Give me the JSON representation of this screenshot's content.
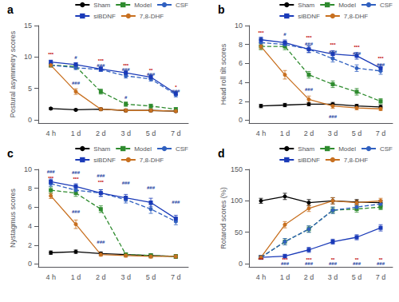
{
  "chart_data": [
    {
      "type": "line",
      "title": "a",
      "ylabel": "Postural asymmetry scores",
      "categories": [
        "4 h",
        "1 d",
        "2 d",
        "3 d",
        "5 d",
        "7 d"
      ],
      "ylim": [
        -0.5,
        15
      ],
      "yticks": [
        0,
        5,
        10,
        15
      ],
      "grid": false,
      "legend": "upper right",
      "series": [
        {
          "name": "Sham",
          "color": "#000000",
          "line_style": "solid",
          "marker": "circle",
          "values": [
            1.8,
            1.6,
            1.7,
            1.5,
            1.5,
            1.4
          ],
          "err": [
            0.15,
            0.15,
            0.15,
            0.15,
            0.15,
            0.15
          ]
        },
        {
          "name": "Model",
          "color": "#2e8b2e",
          "line_style": "dashed",
          "marker": "square",
          "values": [
            8.7,
            8.5,
            4.5,
            2.5,
            2.2,
            1.7
          ],
          "err": [
            0.3,
            0.35,
            0.4,
            0.35,
            0.3,
            0.25
          ]
        },
        {
          "name": "CSF",
          "color": "#3060c0",
          "line_style": "dashed",
          "marker": "circle",
          "values": [
            8.7,
            8.3,
            8.0,
            7.0,
            6.5,
            4.0
          ],
          "err": [
            0.25,
            0.3,
            0.3,
            0.35,
            0.35,
            0.35
          ]
        },
        {
          "name": "siBDNF",
          "color": "#1a3ab8",
          "line_style": "solid",
          "marker": "square",
          "values": [
            9.2,
            8.8,
            8.1,
            7.5,
            6.8,
            4.2
          ],
          "err": [
            0.3,
            0.3,
            0.35,
            0.3,
            0.35,
            0.35
          ]
        },
        {
          "name": "7,8-DHF",
          "color": "#c87020",
          "line_style": "solid",
          "marker": "circle",
          "values": [
            8.7,
            4.5,
            1.7,
            1.5,
            1.5,
            1.4
          ],
          "err": [
            0.3,
            0.45,
            0.25,
            0.25,
            0.25,
            0.2
          ]
        }
      ],
      "annotations": [
        {
          "x": "4 h",
          "y": 10.0,
          "text": "***",
          "color": "#c00000"
        },
        {
          "x": "1 d",
          "y": 9.5,
          "text": "#",
          "color": "#2040a0"
        },
        {
          "x": "1 d",
          "y": 5.5,
          "text": "###",
          "color": "#2040a0"
        },
        {
          "x": "2 d",
          "y": 9.0,
          "text": "***",
          "color": "#c00000"
        },
        {
          "x": "2 d",
          "y": 8.3,
          "text": "###",
          "color": "#2040a0"
        },
        {
          "x": "3 d",
          "y": 8.3,
          "text": "***",
          "color": "#c00000"
        },
        {
          "x": "3 d",
          "y": 7.6,
          "text": "###",
          "color": "#2040a0"
        },
        {
          "x": "3 d",
          "y": 3.2,
          "text": "#",
          "color": "#2040a0"
        },
        {
          "x": "5 d",
          "y": 7.5,
          "text": "**",
          "color": "#c00000"
        },
        {
          "x": "5 d",
          "y": 6.9,
          "text": "###",
          "color": "#2040a0"
        },
        {
          "x": "7 d",
          "y": 4.8,
          "text": "*",
          "color": "#c00000"
        },
        {
          "x": "7 d",
          "y": 4.2,
          "text": "###",
          "color": "#2040a0"
        }
      ]
    },
    {
      "type": "line",
      "title": "b",
      "ylabel": "Head roll tilt scores",
      "categories": [
        "4 h",
        "1 d",
        "2 d",
        "3 d",
        "5 d",
        "7 d"
      ],
      "ylim": [
        -0.3,
        10
      ],
      "yticks": [
        0,
        2,
        4,
        6,
        8,
        10
      ],
      "grid": false,
      "legend": "upper right",
      "series": [
        {
          "name": "Sham",
          "color": "#000000",
          "line_style": "solid",
          "marker": "circle",
          "values": [
            1.5,
            1.6,
            1.7,
            1.7,
            1.5,
            1.4
          ],
          "err": [
            0.18,
            0.18,
            0.18,
            0.18,
            0.18,
            0.18
          ]
        },
        {
          "name": "Model",
          "color": "#2e8b2e",
          "line_style": "dashed",
          "marker": "square",
          "values": [
            7.8,
            7.8,
            4.8,
            3.8,
            3.0,
            2.0
          ],
          "err": [
            0.35,
            0.35,
            0.35,
            0.35,
            0.35,
            0.28
          ]
        },
        {
          "name": "CSF",
          "color": "#3060c0",
          "line_style": "dashed",
          "marker": "circle",
          "values": [
            8.2,
            8.0,
            7.5,
            6.5,
            5.5,
            5.2
          ],
          "err": [
            0.28,
            0.28,
            0.35,
            0.35,
            0.35,
            0.35
          ]
        },
        {
          "name": "siBDNF",
          "color": "#1a3ab8",
          "line_style": "solid",
          "marker": "square",
          "values": [
            8.5,
            8.2,
            7.5,
            7.0,
            6.8,
            5.5
          ],
          "err": [
            0.28,
            0.28,
            0.35,
            0.35,
            0.35,
            0.35
          ]
        },
        {
          "name": "7,8-DHF",
          "color": "#c87020",
          "line_style": "solid",
          "marker": "circle",
          "values": [
            7.8,
            4.8,
            2.2,
            1.5,
            1.3,
            1.2
          ],
          "err": [
            0.28,
            0.45,
            0.35,
            0.25,
            0.2,
            0.18
          ]
        }
      ],
      "annotations": [
        {
          "x": "4 h",
          "y": 9.0,
          "text": "***",
          "color": "#c00000"
        },
        {
          "x": "4 h",
          "y": 8.3,
          "text": "#",
          "color": "#2040a0"
        },
        {
          "x": "1 d",
          "y": 8.8,
          "text": "#",
          "color": "#2040a0"
        },
        {
          "x": "2 d",
          "y": 8.5,
          "text": "***",
          "color": "#c00000"
        },
        {
          "x": "2 d",
          "y": 7.8,
          "text": "###",
          "color": "#2040a0"
        },
        {
          "x": "2 d",
          "y": 3.0,
          "text": "###",
          "color": "#2040a0"
        },
        {
          "x": "3 d",
          "y": 7.7,
          "text": "***",
          "color": "#c00000"
        },
        {
          "x": "3 d",
          "y": 7.0,
          "text": "###",
          "color": "#2040a0"
        },
        {
          "x": "3 d",
          "y": 0.1,
          "text": "###",
          "color": "#2040a0"
        },
        {
          "x": "5 d",
          "y": 7.5,
          "text": "***",
          "color": "#c00000"
        },
        {
          "x": "5 d",
          "y": 6.8,
          "text": "###",
          "color": "#2040a0"
        },
        {
          "x": "7 d",
          "y": 6.3,
          "text": "***",
          "color": "#c00000"
        },
        {
          "x": "7 d",
          "y": 5.6,
          "text": "###",
          "color": "#2040a0"
        }
      ]
    },
    {
      "type": "line",
      "title": "c",
      "ylabel": "Nystagmus scores",
      "categories": [
        "4 h",
        "1 d",
        "2 d",
        "3 d",
        "5 d",
        "7 d"
      ],
      "ylim": [
        -0.3,
        10
      ],
      "yticks": [
        0,
        2,
        4,
        6,
        8,
        10
      ],
      "grid": false,
      "legend": "upper right",
      "series": [
        {
          "name": "Sham",
          "color": "#000000",
          "line_style": "solid",
          "marker": "circle",
          "values": [
            1.2,
            1.3,
            1.1,
            1.0,
            0.9,
            0.8
          ],
          "err": [
            0.18,
            0.18,
            0.18,
            0.18,
            0.18,
            0.18
          ]
        },
        {
          "name": "Model",
          "color": "#2e8b2e",
          "line_style": "dashed",
          "marker": "square",
          "values": [
            7.8,
            7.5,
            5.8,
            1.0,
            0.9,
            0.8
          ],
          "err": [
            0.35,
            0.35,
            0.35,
            0.18,
            0.18,
            0.18
          ]
        },
        {
          "name": "CSF",
          "color": "#3060c0",
          "line_style": "dashed",
          "marker": "circle",
          "values": [
            8.5,
            7.8,
            7.5,
            6.8,
            5.8,
            4.5
          ],
          "err": [
            0.28,
            0.28,
            0.35,
            0.35,
            0.45,
            0.35
          ]
        },
        {
          "name": "siBDNF",
          "color": "#1a3ab8",
          "line_style": "solid",
          "marker": "square",
          "values": [
            8.7,
            8.2,
            7.5,
            7.0,
            6.5,
            4.8
          ],
          "err": [
            0.28,
            0.28,
            0.35,
            0.35,
            0.45,
            0.35
          ]
        },
        {
          "name": "7,8-DHF",
          "color": "#c87020",
          "line_style": "solid",
          "marker": "circle",
          "values": [
            7.2,
            4.2,
            1.0,
            0.9,
            0.8,
            0.8
          ],
          "err": [
            0.28,
            0.45,
            0.18,
            0.18,
            0.18,
            0.18
          ]
        }
      ],
      "annotations": [
        {
          "x": "4 h",
          "y": 9.5,
          "text": "###",
          "color": "#2040a0"
        },
        {
          "x": "4 h",
          "y": 8.8,
          "text": "***",
          "color": "#c00000"
        },
        {
          "x": "1 d",
          "y": 9.4,
          "text": "###",
          "color": "#2040a0"
        },
        {
          "x": "1 d",
          "y": 8.7,
          "text": "***",
          "color": "#c00000"
        },
        {
          "x": "1 d",
          "y": 5.3,
          "text": "###",
          "color": "#2040a0"
        },
        {
          "x": "2 d",
          "y": 9.1,
          "text": "###",
          "color": "#2040a0"
        },
        {
          "x": "2 d",
          "y": 8.4,
          "text": "***",
          "color": "#c00000"
        },
        {
          "x": "2 d",
          "y": 2.1,
          "text": "###",
          "color": "#2040a0"
        },
        {
          "x": "3 d",
          "y": 8.3,
          "text": "###",
          "color": "#2040a0"
        },
        {
          "x": "5 d",
          "y": 7.8,
          "text": "###",
          "color": "#2040a0"
        },
        {
          "x": "7 d",
          "y": 6.3,
          "text": "###",
          "color": "#2040a0"
        }
      ]
    },
    {
      "type": "line",
      "title": "d",
      "ylabel": "Rotarod scores (%)",
      "categories": [
        "4 h",
        "1 d",
        "2 d",
        "3 d",
        "5 d",
        "7 d"
      ],
      "ylim": [
        -5,
        150
      ],
      "yticks": [
        0,
        50,
        100,
        150
      ],
      "grid": false,
      "legend": "upper right",
      "series": [
        {
          "name": "Sham",
          "color": "#000000",
          "line_style": "solid",
          "marker": "circle",
          "values": [
            100,
            107,
            97,
            100,
            98,
            97
          ],
          "err": [
            4,
            5,
            5,
            5,
            4,
            4
          ]
        },
        {
          "name": "Model",
          "color": "#2e8b2e",
          "line_style": "dashed",
          "marker": "square",
          "values": [
            10,
            35,
            55,
            85,
            87,
            90
          ],
          "err": [
            3,
            5,
            5,
            5,
            5,
            4
          ]
        },
        {
          "name": "CSF",
          "color": "#3060c0",
          "line_style": "dashed",
          "marker": "circle",
          "values": [
            10,
            35,
            55,
            85,
            90,
            95
          ],
          "err": [
            3,
            5,
            5,
            5,
            5,
            4
          ]
        },
        {
          "name": "siBDNF",
          "color": "#1a3ab8",
          "line_style": "solid",
          "marker": "square",
          "values": [
            10,
            12,
            22,
            35,
            42,
            57
          ],
          "err": [
            3,
            3,
            4,
            4,
            4,
            5
          ]
        },
        {
          "name": "7,8-DHF",
          "color": "#c87020",
          "line_style": "solid",
          "marker": "circle",
          "values": [
            10,
            62,
            88,
            100,
            97,
            100
          ],
          "err": [
            3,
            5,
            5,
            5,
            4,
            4
          ]
        }
      ],
      "annotations": [
        {
          "x": "4 h",
          "y": 2,
          "text": "***",
          "color": "#c00000"
        },
        {
          "x": "1 d",
          "y": 2,
          "text": "***",
          "color": "#c00000"
        },
        {
          "x": "1 d",
          "y": -4,
          "text": "###",
          "color": "#2040a0"
        },
        {
          "x": "2 d",
          "y": 2,
          "text": "***",
          "color": "#c00000"
        },
        {
          "x": "2 d",
          "y": -4,
          "text": "###",
          "color": "#2040a0"
        },
        {
          "x": "3 d",
          "y": 2,
          "text": "**",
          "color": "#c00000"
        },
        {
          "x": "3 d",
          "y": -4,
          "text": "###",
          "color": "#2040a0"
        },
        {
          "x": "5 d",
          "y": 2,
          "text": "**",
          "color": "#c00000"
        },
        {
          "x": "5 d",
          "y": -4,
          "text": "###",
          "color": "#2040a0"
        },
        {
          "x": "7 d",
          "y": 2,
          "text": "**",
          "color": "#c00000"
        },
        {
          "x": "7 d",
          "y": -4,
          "text": "###",
          "color": "#2040a0"
        }
      ]
    }
  ]
}
